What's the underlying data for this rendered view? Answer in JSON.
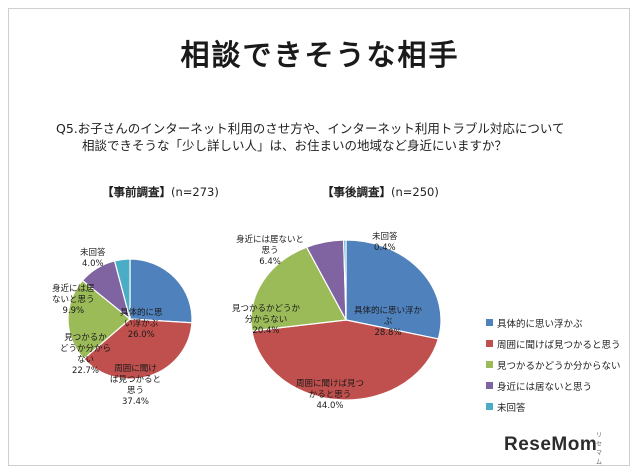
{
  "title": "相談できそうな相手",
  "question": {
    "line1": "Q5.お子さんのインターネット利用のさせ方や、インターネット利用トラブル対応について",
    "line2": "相談できそうな「少し詳しい人」は、お住まいの地域など身近にいますか？"
  },
  "colors": {
    "blue": "#4f81bd",
    "red": "#c0504d",
    "green": "#9bbb59",
    "purple": "#8064a2",
    "cyan": "#4bacc6"
  },
  "legend": [
    {
      "label": "具体的に思い浮かぶ",
      "color": "#4f81bd"
    },
    {
      "label": "周囲に聞けば見つかると思う",
      "color": "#c0504d"
    },
    {
      "label": "見つかるかどうか分からない",
      "color": "#9bbb59"
    },
    {
      "label": "身近には居ないと思う",
      "color": "#8064a2"
    },
    {
      "label": "未回答",
      "color": "#4bacc6"
    }
  ],
  "chart_data": [
    {
      "type": "pie",
      "title_bracket": "【事前調査】",
      "title_n": "(n=273)",
      "slices": [
        {
          "label": "具体的に思い浮かぶ",
          "value": 26.0,
          "value_label": "26.0%"
        },
        {
          "label": "周囲に聞けば見つかると思う",
          "value": 37.4,
          "value_label": "37.4%"
        },
        {
          "label": "見つかるかどうか分からない",
          "value": 22.7,
          "value_label": "22.7%"
        },
        {
          "label": "身近には居ないと思う",
          "value": 9.9,
          "value_label": "9.9%"
        },
        {
          "label": "未回答",
          "value": 4.0,
          "value_label": "4.0%"
        }
      ],
      "slice_labels": [
        "具体的に思い浮かぶ",
        "周囲に聞けば見つかると思う",
        "見つかるかどうか分からない",
        "身近には居ないと思う",
        "未回答"
      ]
    },
    {
      "type": "pie",
      "title_bracket": "【事後調査】",
      "title_n": "(n=250)",
      "slices": [
        {
          "label": "具体的に思い浮かぶ",
          "value": 28.8,
          "value_label": "28.8%"
        },
        {
          "label": "周囲に聞けば見つかると思う",
          "value": 44.0,
          "value_label": "44.0%"
        },
        {
          "label": "見つかるかどうか分からない",
          "value": 20.4,
          "value_label": "20.4%"
        },
        {
          "label": "身近には居ないと思う",
          "value": 6.4,
          "value_label": "6.4%"
        },
        {
          "label": "未回答",
          "value": 0.4,
          "value_label": "0.4%"
        }
      ],
      "slice_labels": [
        "具体的に思い浮かぶ",
        "周囲に聞けば見つかると思う",
        "見つかるかどうか分からない",
        "身近には居ないと思う",
        "未回答"
      ]
    }
  ],
  "pre_labels": [
    {
      "text": "具体的に思\nい浮かぶ",
      "value": "26.0%"
    },
    {
      "text": "周囲に聞け\nば見つかると\n思う",
      "value": "37.4%"
    },
    {
      "text": "見つかるか\nどうか分から\nない",
      "value": "22.7%"
    },
    {
      "text": "身近には居\nないと思う",
      "value": "9.9%"
    },
    {
      "text": "未回答",
      "value": "4.0%"
    }
  ],
  "post_labels": [
    {
      "text": "具体的に思い浮か\nぶ",
      "value": "28.8%"
    },
    {
      "text": "周囲に聞けば見つ\nかると思う",
      "value": "44.0%"
    },
    {
      "text": "見つかるかどうか\n分からない",
      "value": "20.4%"
    },
    {
      "text": "身近には居ないと\n思う",
      "value": "6.4%"
    },
    {
      "text": "未回答",
      "value": "0.4%"
    }
  ],
  "logo": {
    "text": "ReseMom",
    "small": "リセマム"
  }
}
